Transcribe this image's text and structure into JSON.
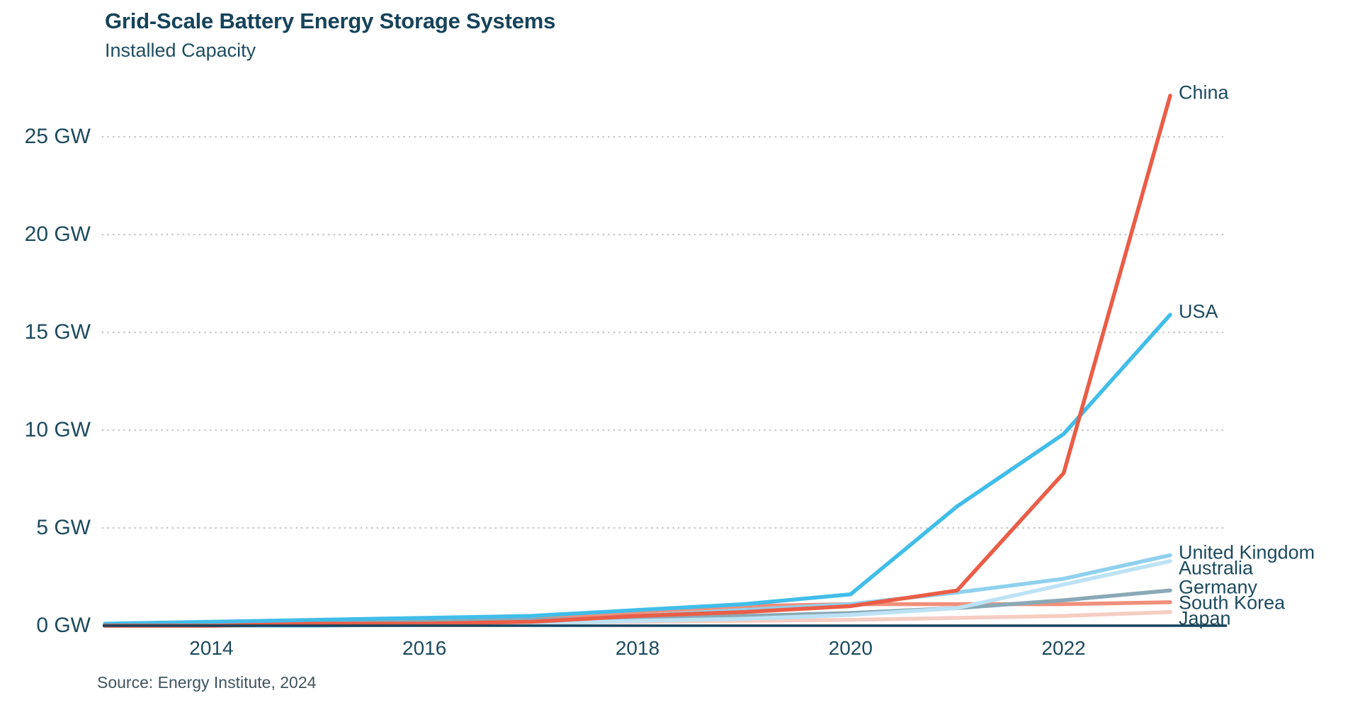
{
  "header": {
    "title": "Grid-Scale Battery Energy Storage Systems",
    "subtitle": "Installed Capacity"
  },
  "source_note": "Source: Energy Institute, 2024",
  "colors": {
    "title_text": "#16435a",
    "axis_text": "#1d4a5e",
    "axis_line": "#16435a",
    "gridline": "#c9c9c9",
    "background": "#ffffff"
  },
  "chart_data": {
    "type": "line",
    "title": "Grid-Scale Battery Energy Storage Systems",
    "subtitle": "Installed Capacity",
    "unit": "GW",
    "x": [
      2013,
      2014,
      2015,
      2016,
      2017,
      2018,
      2019,
      2020,
      2021,
      2022,
      2023
    ],
    "x_ticks": [
      2014,
      2016,
      2018,
      2020,
      2022
    ],
    "x_tick_labels": [
      "2014",
      "2016",
      "2018",
      "2020",
      "2022"
    ],
    "y_ticks": [
      25,
      20,
      15,
      10,
      5,
      0
    ],
    "y_tick_labels": [
      "25 GW",
      "20 GW",
      "15 GW",
      "10 GW",
      "5 GW",
      "0 GW"
    ],
    "ylim": [
      0,
      27.5
    ],
    "grid": "horizontal-dotted",
    "legend_position": "line-end-labels-right",
    "series": [
      {
        "name": "China",
        "color": "#ea5d47",
        "values": [
          0.0,
          0.0,
          0.1,
          0.1,
          0.2,
          0.5,
          0.7,
          1.0,
          1.8,
          7.8,
          27.1
        ]
      },
      {
        "name": "USA",
        "color": "#41bde9",
        "values": [
          0.1,
          0.2,
          0.3,
          0.4,
          0.5,
          0.8,
          1.1,
          1.6,
          6.1,
          9.8,
          15.9
        ]
      },
      {
        "name": "United Kingdom",
        "color": "#8fd0ee",
        "values": [
          0.0,
          0.0,
          0.0,
          0.1,
          0.2,
          0.5,
          0.8,
          1.1,
          1.7,
          2.4,
          3.6
        ]
      },
      {
        "name": "Australia",
        "color": "#bce2f5",
        "values": [
          0.0,
          0.0,
          0.0,
          0.05,
          0.1,
          0.25,
          0.35,
          0.55,
          0.9,
          2.1,
          3.3
        ]
      },
      {
        "name": "Germany",
        "color": "#8aa9b6",
        "values": [
          0.05,
          0.1,
          0.1,
          0.2,
          0.3,
          0.4,
          0.5,
          0.65,
          0.9,
          1.3,
          1.8
        ]
      },
      {
        "name": "South Korea",
        "color": "#f0907c",
        "values": [
          0.0,
          0.05,
          0.1,
          0.2,
          0.3,
          0.7,
          1.0,
          1.1,
          1.1,
          1.1,
          1.2
        ]
      },
      {
        "name": "Japan",
        "color": "#f6cdc3",
        "values": [
          0.0,
          0.05,
          0.1,
          0.1,
          0.15,
          0.2,
          0.25,
          0.3,
          0.4,
          0.5,
          0.7
        ]
      }
    ]
  }
}
